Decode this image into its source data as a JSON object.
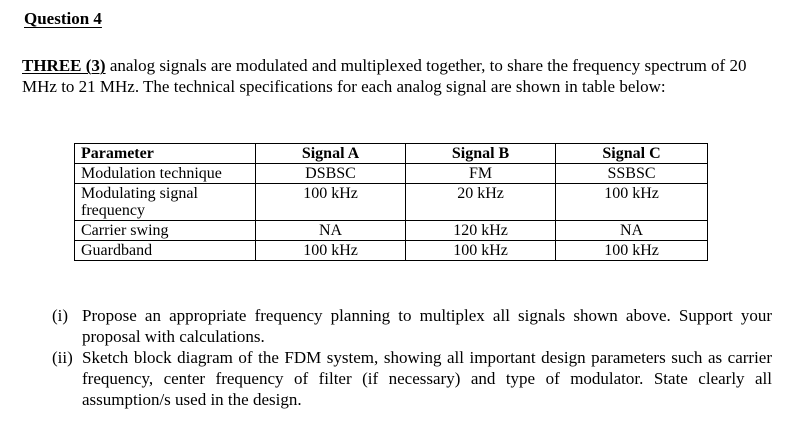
{
  "heading": "Question 4",
  "intro": {
    "lead": "THREE (3)",
    "text": " analog signals are modulated and multiplexed together, to share the frequency spectrum of 20 MHz to 21 MHz. The technical specifications for each analog signal are shown in table below:"
  },
  "table": {
    "headers": [
      "Parameter",
      "Signal A",
      "Signal B",
      "Signal C"
    ],
    "rows": [
      {
        "label": "Modulation technique",
        "values": [
          "DSBSC",
          "FM",
          "SSBSC"
        ]
      },
      {
        "label": "Modulating signal frequency",
        "values": [
          "100 kHz",
          "20 kHz",
          "100 kHz"
        ]
      },
      {
        "label": "Carrier swing",
        "values": [
          "NA",
          "120 kHz",
          "NA"
        ]
      },
      {
        "label": "Guardband",
        "values": [
          "100 kHz",
          "100 kHz",
          "100 kHz"
        ]
      }
    ]
  },
  "questions": [
    {
      "num": "(i)",
      "text": "Propose an appropriate frequency planning to multiplex all signals shown above. Support your proposal with calculations."
    },
    {
      "num": "(ii)",
      "text": "Sketch block diagram of the FDM system, showing all important design parameters such as carrier frequency, center frequency of filter (if necessary) and type of modulator. State clearly all assumption/s used in the design."
    }
  ]
}
